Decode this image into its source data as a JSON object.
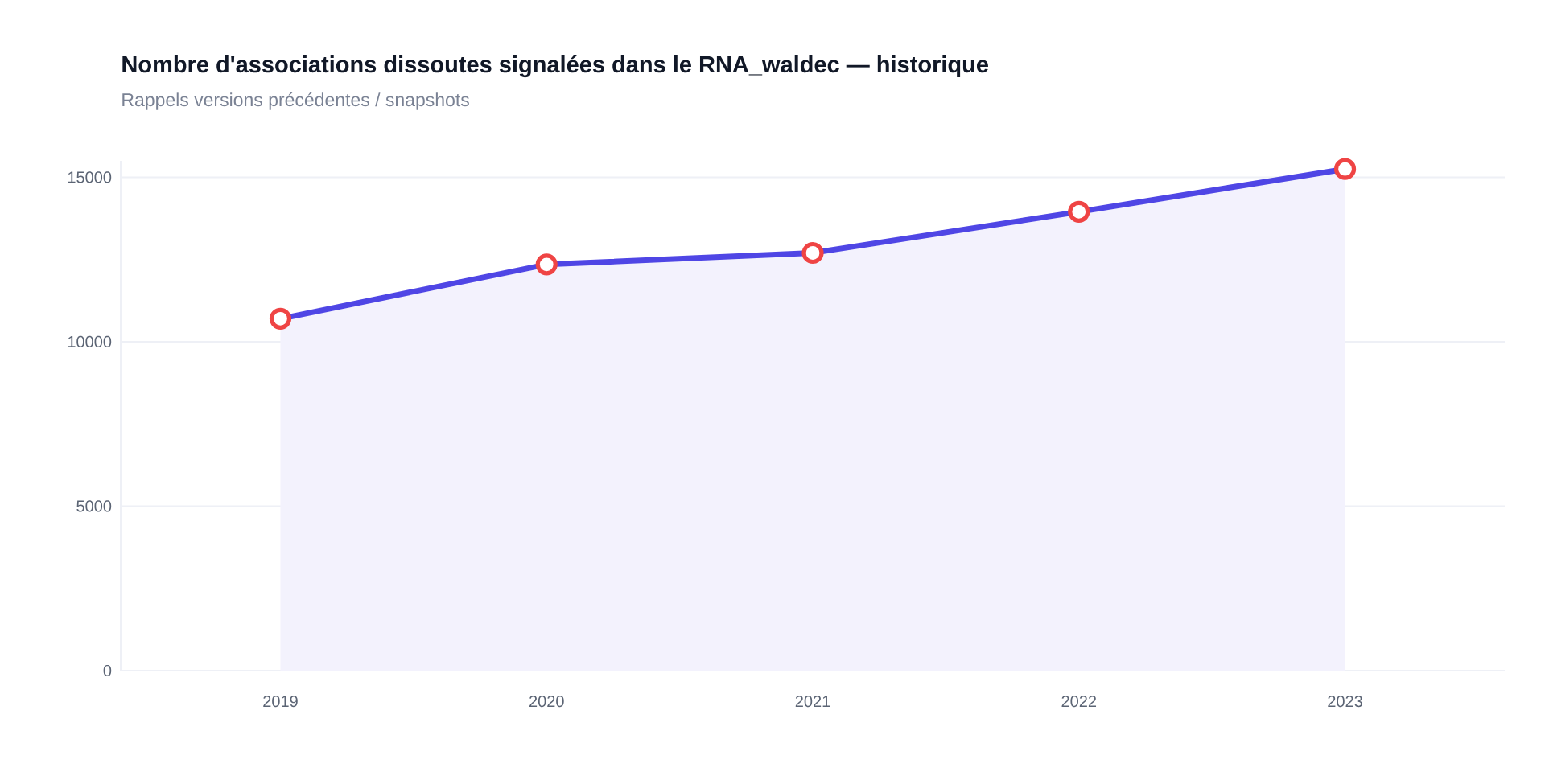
{
  "chart_data": {
    "type": "area",
    "title": "Nombre d'associations dissoutes signalées dans le RNA_waldec — historique",
    "subtitle": "Rappels versions précédentes / snapshots",
    "categories": [
      "2019",
      "2020",
      "2021",
      "2022",
      "2023"
    ],
    "values": [
      10700,
      12350,
      12700,
      13950,
      15250
    ],
    "color": "#4f46e5",
    "ylim": [
      0,
      15500
    ],
    "yticks": [
      0,
      5000,
      10000,
      15000
    ],
    "grid": "y",
    "marker": "circle",
    "line_style": "solid"
  }
}
